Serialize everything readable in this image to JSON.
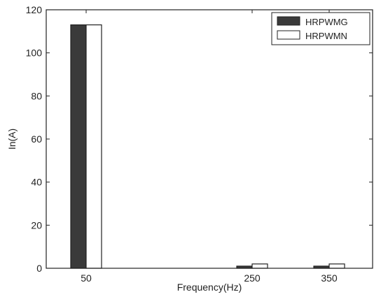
{
  "chart_data": {
    "type": "bar",
    "xlabel": "Frequency(Hz)",
    "ylabel": "In(A)",
    "ylim": [
      0,
      120
    ],
    "yticks": [
      0,
      20,
      40,
      60,
      80,
      100,
      120
    ],
    "categories": [
      "50",
      "250",
      "350"
    ],
    "series": [
      {
        "name": "HRPWMG",
        "values": [
          113,
          1,
          1
        ],
        "color": "#3a3a3a"
      },
      {
        "name": "HRPWMN",
        "values": [
          113,
          2,
          2
        ],
        "color": "#ffffff"
      }
    ],
    "legend": "top-right",
    "grid": false
  }
}
